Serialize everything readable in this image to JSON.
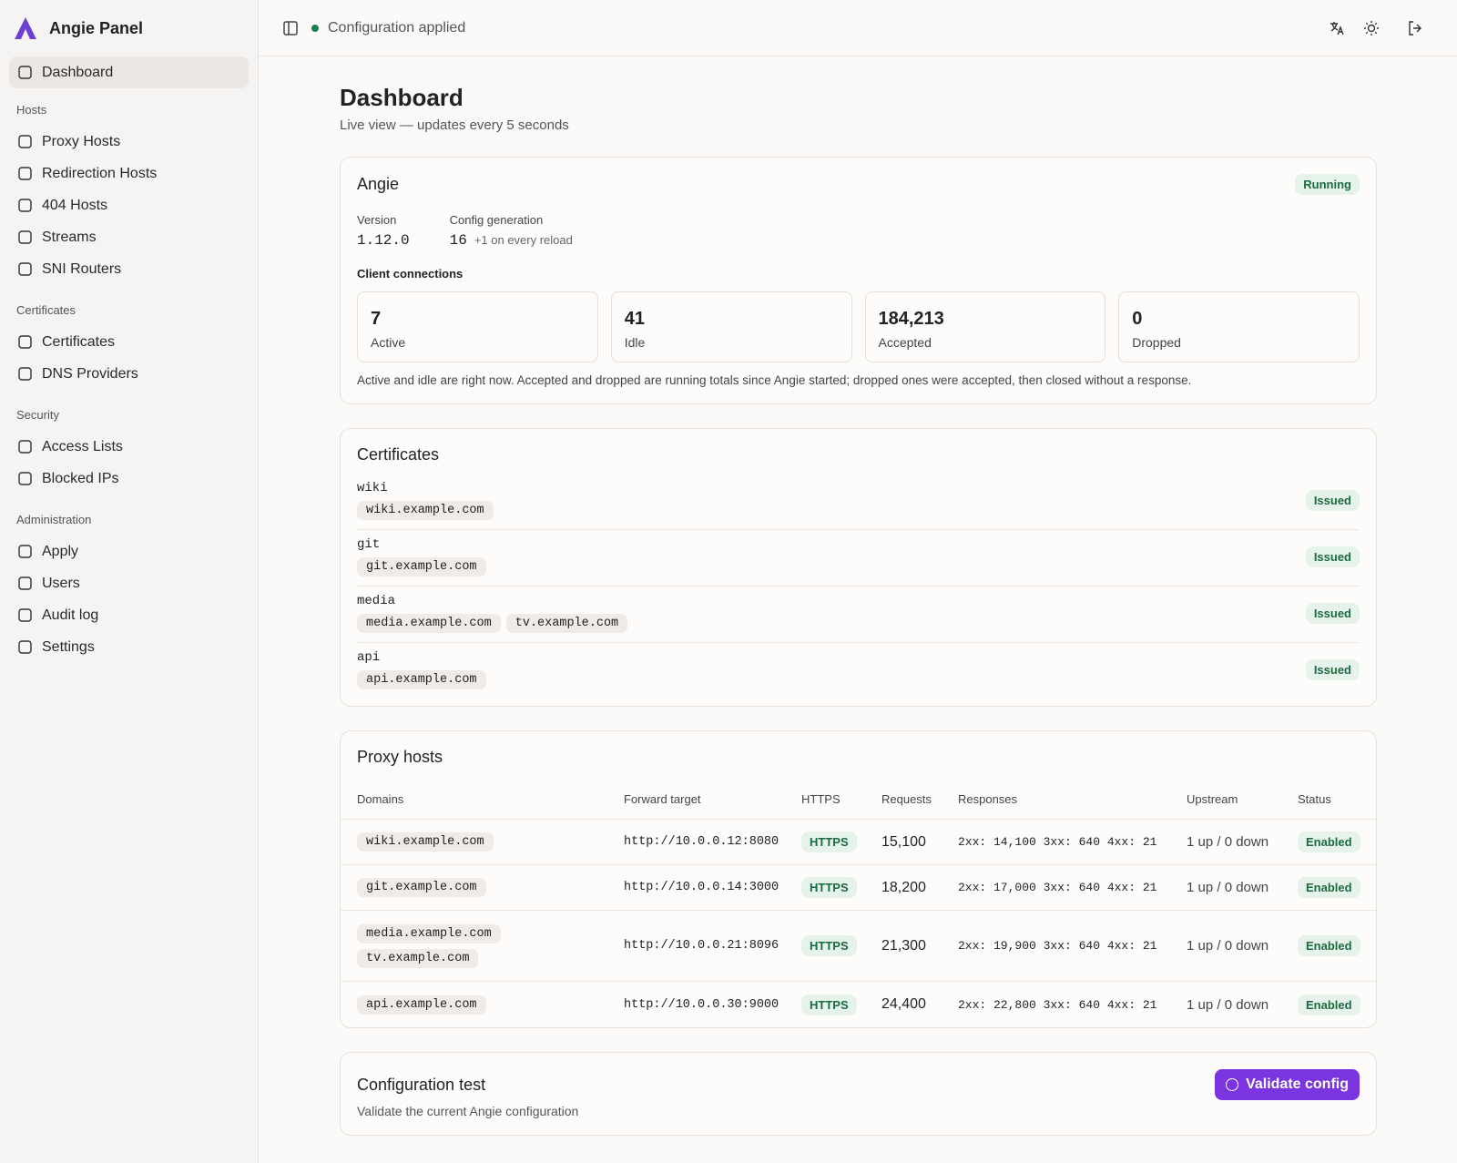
{
  "app": {
    "name": "Angie Panel"
  },
  "sidebar": {
    "top": [
      {
        "label": "Dashboard"
      }
    ],
    "sections": [
      {
        "title": "Hosts",
        "items": [
          "Proxy Hosts",
          "Redirection Hosts",
          "404 Hosts",
          "Streams",
          "SNI Routers"
        ]
      },
      {
        "title": "Certificates",
        "items": [
          "Certificates",
          "DNS Providers"
        ]
      },
      {
        "title": "Security",
        "items": [
          "Access Lists",
          "Blocked IPs"
        ]
      },
      {
        "title": "Administration",
        "items": [
          "Apply",
          "Users",
          "Audit log",
          "Settings"
        ]
      }
    ]
  },
  "topbar": {
    "status": "Configuration applied"
  },
  "page": {
    "title": "Dashboard",
    "subtitle": "Live view — updates every 5 seconds"
  },
  "angie": {
    "title": "Angie",
    "status": "Running",
    "version_label": "Version",
    "version": "1.12.0",
    "generation_label": "Config generation",
    "generation": 16,
    "generation_note": "+1 on every reload",
    "connections_title": "Client connections",
    "connections": [
      {
        "value": "7",
        "label": "Active"
      },
      {
        "value": "41",
        "label": "Idle"
      },
      {
        "value": "184,213",
        "label": "Accepted"
      },
      {
        "value": "0",
        "label": "Dropped"
      }
    ],
    "note": "Active and idle are right now. Accepted and dropped are running totals since Angie started; dropped ones were accepted, then closed without a response."
  },
  "certificates": {
    "title": "Certificates",
    "items": [
      {
        "name": "wiki",
        "status": "Issued",
        "domains": [
          "wiki.example.com"
        ]
      },
      {
        "name": "git",
        "status": "Issued",
        "domains": [
          "git.example.com"
        ]
      },
      {
        "name": "media",
        "status": "Issued",
        "domains": [
          "media.example.com",
          "tv.example.com"
        ]
      },
      {
        "name": "api",
        "status": "Issued",
        "domains": [
          "api.example.com"
        ]
      }
    ]
  },
  "proxy_hosts": {
    "title": "Proxy hosts",
    "columns": [
      "Domains",
      "Forward target",
      "HTTPS",
      "Requests",
      "Responses",
      "Upstream",
      "Status"
    ],
    "rows": [
      {
        "domains": [
          "wiki.example.com"
        ],
        "target": "http://10.0.0.12:8080",
        "https": "HTTPS",
        "requests": "15,100",
        "responses": "2xx: 14,100 3xx: 640 4xx: 21",
        "upstream": "1 up / 0 down",
        "status": "Enabled"
      },
      {
        "domains": [
          "git.example.com"
        ],
        "target": "http://10.0.0.14:3000",
        "https": "HTTPS",
        "requests": "18,200",
        "responses": "2xx: 17,000 3xx: 640 4xx: 21",
        "upstream": "1 up / 0 down",
        "status": "Enabled"
      },
      {
        "domains": [
          "media.example.com",
          "tv.example.com"
        ],
        "target": "http://10.0.0.21:8096",
        "https": "HTTPS",
        "requests": "21,300",
        "responses": "2xx: 19,900 3xx: 640 4xx: 21",
        "upstream": "1 up / 0 down",
        "status": "Enabled"
      },
      {
        "domains": [
          "api.example.com"
        ],
        "target": "http://10.0.0.30:9000",
        "https": "HTTPS",
        "requests": "24,400",
        "responses": "2xx: 22,800 3xx: 640 4xx: 21",
        "upstream": "1 up / 0 down",
        "status": "Enabled"
      }
    ]
  },
  "config_test": {
    "title": "Configuration test",
    "subtitle": "Validate the current Angie configuration",
    "button": "Validate config"
  }
}
